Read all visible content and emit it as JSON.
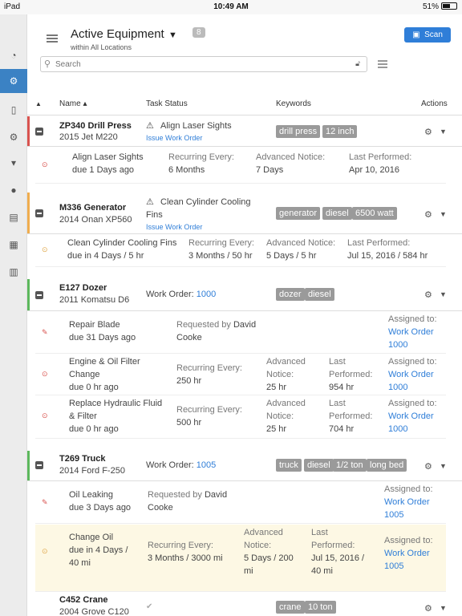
{
  "status_bar": {
    "device": "iPad",
    "time": "10:49 AM",
    "battery": "51%"
  },
  "header": {
    "title": "Active Equipment",
    "count": "8",
    "subtitle": "within All Locations",
    "scan_label": "Scan",
    "search_placeholder": "Search"
  },
  "columns": {
    "name": "Name",
    "task_status": "Task Status",
    "keywords": "Keywords",
    "actions": "Actions"
  },
  "equipment": [
    {
      "name": "ZP340 Drill Press",
      "model": "2015 Jet M220",
      "stripe": "#d9534f",
      "status": "Align Laser Sights",
      "issue_link": "Issue Work Order",
      "tags": [
        "drill press",
        "12 inch"
      ],
      "tasks": [
        {
          "title": "Align Laser Sights",
          "due": "due 1 Days ago",
          "c1_label": "Recurring Every:",
          "c1_value": "6 Months",
          "c2_label": "Advanced Notice:",
          "c2_value": "7 Days",
          "c3_label": "Last Performed:",
          "c3_value": "Apr 10, 2016"
        }
      ]
    },
    {
      "name": "M336 Generator",
      "model": "2014 Onan XP560",
      "stripe": "#f0ad4e",
      "status_line1": "Clean Cylinder Cooling",
      "status_line2": "Fins",
      "issue_link": "Issue Work Order",
      "tags": [
        "generator",
        "diesel",
        "6500 watt"
      ],
      "tasks": [
        {
          "title": "Clean Cylinder Cooling Fins",
          "due": "due in 4 Days / 5 hr",
          "c1_label": "Recurring Every:",
          "c1_value": "3 Months / 50 hr",
          "c2_label": "Advanced Notice:",
          "c2_value": "5 Days / 5 hr",
          "c3_label": "Last Performed:",
          "c3_value": "Jul 15, 2016 / 584 hr"
        }
      ]
    },
    {
      "name": "E127 Dozer",
      "model": "2011 Komatsu D6",
      "stripe": "#5cb85c",
      "wo_label": "Work Order:",
      "wo_number": "1000",
      "tags": [
        "dozer",
        "diesel"
      ],
      "tasks": [
        {
          "title": "Repair Blade",
          "due": "due 31 Days ago",
          "req_label": "Requested by",
          "req_name1": "David",
          "req_name2": "Cooke",
          "assigned_label": "Assigned to:",
          "assigned_line1": "Work Order",
          "assigned_line2": "1000"
        },
        {
          "title1": "Engine & Oil Filter",
          "title2": "Change",
          "due": "due 0 hr ago",
          "c1_label": "Recurring Every:",
          "c1_value": "250 hr",
          "c2_label1": "Advanced",
          "c2_label2": "Notice:",
          "c2_value": "25 hr",
          "c3_label1": "Last",
          "c3_label2": "Performed:",
          "c3_value": "954 hr",
          "assigned_label": "Assigned to:",
          "assigned_line1": "Work Order",
          "assigned_line2": "1000"
        },
        {
          "title1": "Replace Hydraulic Fluid",
          "title2": "& Filter",
          "due": "due 0 hr ago",
          "c1_label": "Recurring Every:",
          "c1_value": "500 hr",
          "c2_label1": "Advanced",
          "c2_label2": "Notice:",
          "c2_value": "25 hr",
          "c3_label1": "Last",
          "c3_label2": "Performed:",
          "c3_value": "704 hr",
          "assigned_label": "Assigned to:",
          "assigned_line1": "Work Order",
          "assigned_line2": "1000"
        }
      ]
    },
    {
      "name": "T269 Truck",
      "model": "2014 Ford F-250",
      "stripe": "#5cb85c",
      "wo_label": "Work Order:",
      "wo_number": "1005",
      "tags": [
        "truck",
        "diesel",
        "1/2 ton",
        "long bed"
      ],
      "tasks": [
        {
          "title": "Oil Leaking",
          "due": "due 3 Days ago",
          "req_label": "Requested by",
          "req_name1": "David",
          "req_name2": "Cooke",
          "assigned_label": "Assigned to:",
          "assigned_line1": "Work Order",
          "assigned_line2": "1005"
        },
        {
          "title": "Change Oil",
          "due1": "due in 4 Days /",
          "due2": "40 mi",
          "c1_label": "Recurring Every:",
          "c1_value": "3 Months / 3000 mi",
          "c2_label1": "Advanced",
          "c2_label2": "Notice:",
          "c2_value1": "5 Days / 200",
          "c2_value2": "mi",
          "c3_label1": "Last",
          "c3_label2": "Performed:",
          "c3_value1": "Jul 15, 2016 /",
          "c3_value2": "40 mi",
          "assigned_label": "Assigned to:",
          "assigned_line1": "Work Order",
          "assigned_line2": "1005"
        }
      ]
    },
    {
      "name": "C452 Crane",
      "model": "2004 Grove C120",
      "tags": [
        "crane",
        "10 ton"
      ]
    }
  ]
}
